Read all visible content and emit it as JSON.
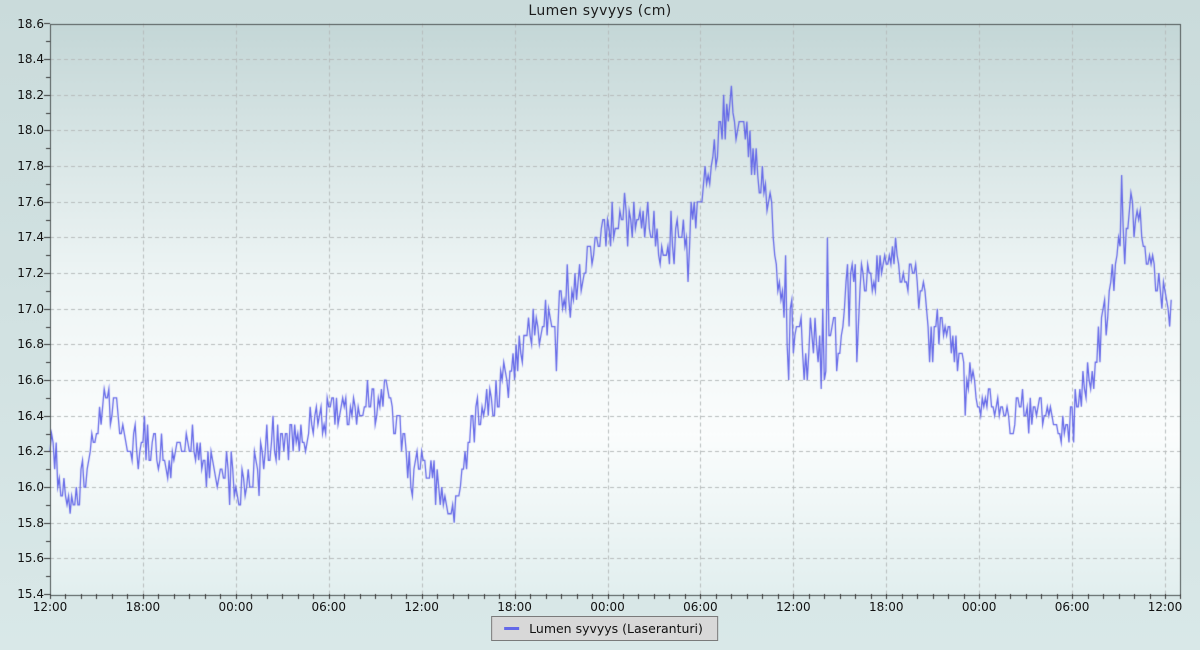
{
  "page": {
    "title": "Lumen syvyys (cm)"
  },
  "colors": {
    "line": "#6468e8",
    "grid": "#b7bcbc",
    "frame": "#4f5656",
    "tick": "#333333",
    "plot_bg_top": "#c4d7d7",
    "plot_bg_mid": "#fbfdfd",
    "plot_bg_bottom": "#e2efef",
    "page_bg_top": "#cadbdb",
    "page_bg_bottom": "#d9e8e8",
    "legend_bg": "#d8d8d8",
    "legend_border": "#7a7a7a"
  },
  "chart_data": {
    "type": "line",
    "title": "Lumen syvyys (cm)",
    "grid": true,
    "legend_position": "bottom-center",
    "y_axis": {
      "min": 15.4,
      "max": 18.6,
      "tick_step": 0.2,
      "minor_step": 0.1,
      "unit": "cm",
      "tick_labels": [
        "18.6",
        "18.4",
        "18.2",
        "18.0",
        "17.8",
        "17.6",
        "17.4",
        "17.2",
        "17.0",
        "16.8",
        "16.6",
        "16.4",
        "16.2",
        "16.0",
        "15.8",
        "15.6",
        "15.4"
      ]
    },
    "x_axis": {
      "unit": "time",
      "tick_interval_hours": 6,
      "minor_tick_hours": 1,
      "total_hours": 72,
      "data_end_hours": 72.5,
      "labels": [
        "12:00",
        "18:00",
        "00:00",
        "06:00",
        "12:00",
        "18:00",
        "00:00",
        "06:00",
        "12:00",
        "18:00",
        "00:00",
        "06:00",
        "12:00"
      ]
    },
    "series": [
      {
        "name": "Lumen syvyys (Laseranturi)",
        "color": "#6468e8",
        "t_step_hours": 0.5,
        "noise_amplitude": 0.12,
        "noise_boost": {
          "from_hours": 47,
          "to_hours": 52.5,
          "factor": 1.9
        },
        "quantize_cm": 0.05,
        "trend": [
          16.3,
          16.1,
          15.9,
          15.85,
          16.0,
          16.15,
          16.3,
          16.5,
          16.45,
          16.35,
          16.3,
          16.25,
          16.2,
          16.25,
          16.2,
          16.15,
          16.1,
          16.2,
          16.25,
          16.2,
          16.1,
          16.1,
          16.05,
          16.05,
          15.95,
          16.05,
          16.1,
          16.15,
          16.2,
          16.3,
          16.2,
          16.25,
          16.25,
          16.3,
          16.35,
          16.4,
          16.4,
          16.45,
          16.4,
          16.45,
          16.45,
          16.5,
          16.45,
          16.5,
          16.45,
          16.3,
          16.15,
          16.05,
          16.1,
          16.05,
          16.0,
          15.9,
          15.85,
          16.0,
          16.2,
          16.4,
          16.45,
          16.5,
          16.55,
          16.6,
          16.7,
          16.75,
          16.85,
          16.9,
          16.95,
          16.9,
          17.0,
          17.05,
          17.1,
          17.2,
          17.3,
          17.4,
          17.45,
          17.5,
          17.55,
          17.5,
          17.45,
          17.5,
          17.45,
          17.35,
          17.3,
          17.4,
          17.45,
          17.5,
          17.6,
          17.75,
          17.9,
          18.05,
          18.2,
          18.0,
          17.95,
          17.85,
          17.7,
          17.55,
          17.2,
          17.0,
          16.85,
          16.75,
          16.8,
          16.75,
          16.8,
          16.8,
          16.9,
          17.05,
          17.1,
          17.15,
          17.2,
          17.2,
          17.2,
          17.25,
          17.2,
          17.2,
          17.15,
          17.05,
          16.95,
          16.9,
          16.8,
          16.75,
          16.7,
          16.6,
          16.55,
          16.5,
          16.45,
          16.45,
          16.4,
          16.4,
          16.45,
          16.4,
          16.4,
          16.35,
          16.3,
          16.35,
          16.4,
          16.5,
          16.6,
          16.7,
          16.9,
          17.1,
          17.35,
          17.55,
          17.5,
          17.45,
          17.3,
          17.15,
          17.05,
          17.0
        ]
      }
    ]
  },
  "legend": {
    "label": "Lumen syvyys (Laseranturi)"
  }
}
